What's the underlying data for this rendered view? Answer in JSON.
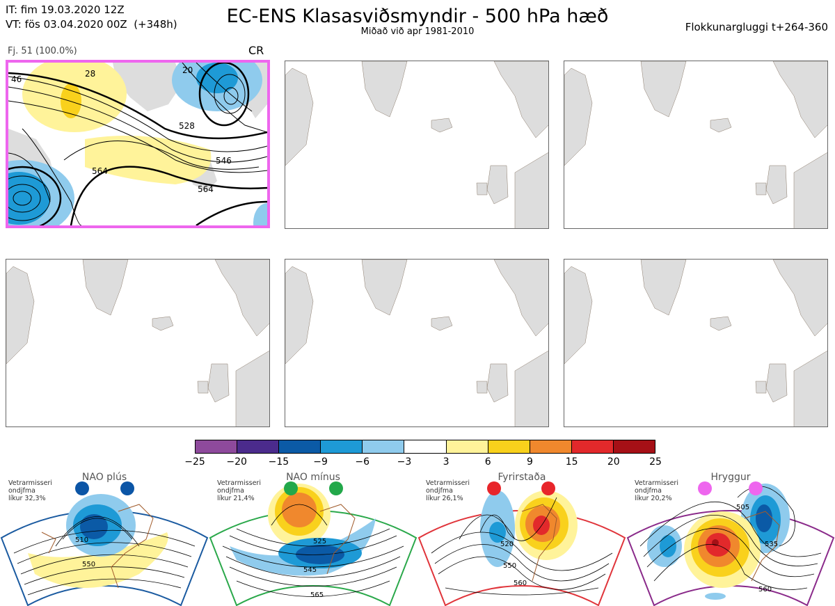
{
  "header": {
    "init_line": "IT: fim 19.03.2020 12Z",
    "valid_line": "VT: fös 03.04.2020 00Z  (+348h)",
    "title": "EC-ENS Klasasviðsmyndir - 500 hPa hæð",
    "subtitle": "Miðað við apr 1981-2010",
    "window_label": "Flokkunargluggi t+264-360"
  },
  "member_panel": {
    "label": "Fj. 51 (100.0%)",
    "regime_code": "CR",
    "contour_labels": [
      "46",
      "28",
      "20",
      "528",
      "546",
      "564",
      "564"
    ]
  },
  "colorbar": {
    "colors": [
      "#8e4a9c",
      "#4b2b8c",
      "#0b5aa6",
      "#1e9ad6",
      "#8fcbed",
      "#ffffff",
      "#fff39a",
      "#f9d11c",
      "#f0882d",
      "#e2292b",
      "#a61016"
    ],
    "ticks": [
      "−25",
      "−20",
      "−15",
      "−9",
      "−6",
      "−3",
      "3",
      "6",
      "9",
      "15",
      "20",
      "25"
    ]
  },
  "regimes": [
    {
      "name": "NAO plús",
      "note": "Vetrarmisseri\nondjfma\nlíkur 32,3%",
      "marker_color": "#0b55a6",
      "frame_color": "#1a5aa0",
      "labels": [
        "510",
        "550"
      ]
    },
    {
      "name": "NAO mínus",
      "note": "Vetrarmisseri\nondjfma\nlíkur 21,4%",
      "marker_color": "#22a84a",
      "frame_color": "#2aa84a",
      "labels": [
        "525",
        "545",
        "565"
      ]
    },
    {
      "name": "Fyrirstaða",
      "note": "Vetrarmisseri\nondjfma\nlíkur 26,1%",
      "marker_color": "#e8252a",
      "frame_color": "#e0343a",
      "labels": [
        "520",
        "550",
        "560"
      ]
    },
    {
      "name": "Hryggur",
      "note": "Vetrarmisseri\nondjfma\nlíkur 20,2%",
      "marker_color": "#ee66ee",
      "frame_color": "#8a2a8a",
      "labels": [
        "505",
        "535",
        "560"
      ]
    }
  ]
}
